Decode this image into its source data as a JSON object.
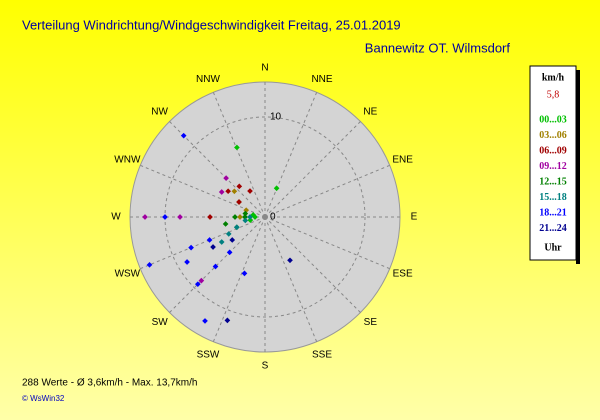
{
  "chart_data": {
    "type": "polar_scatter",
    "title": "Verteilung Windrichtung/Windgeschwindigkeit  Freitag, 25.01.2019",
    "subtitle": "Bannewitz OT. Wilmsdorf",
    "directions": [
      "N",
      "NNE",
      "NE",
      "ENE",
      "E",
      "ESE",
      "SE",
      "SSE",
      "S",
      "SSW",
      "SW",
      "WSW",
      "W",
      "WNW",
      "NW",
      "NNW"
    ],
    "rlim": [
      0,
      13.5
    ],
    "rticks": [
      0,
      10
    ],
    "legend_unit": "km/h",
    "current_value": "5,8",
    "legend_footer": "Uhr",
    "series": [
      {
        "name": "00...03",
        "color": "#00c000",
        "direction": [
          270,
          270,
          258,
          280,
          338,
          22
        ],
        "speed": [
          1,
          2,
          1.5,
          1.2,
          7.5,
          3.1
        ]
      },
      {
        "name": "03...06",
        "color": "#a08000",
        "direction": [
          300,
          310,
          270,
          290
        ],
        "speed": [
          3,
          4,
          2.5,
          2
        ]
      },
      {
        "name": "06...09",
        "color": "#a00000",
        "direction": [
          305,
          320,
          270,
          300,
          330
        ],
        "speed": [
          4.5,
          4,
          5.5,
          3,
          3
        ]
      },
      {
        "name": "09...12",
        "color": "#a000a0",
        "direction": [
          300,
          315,
          270,
          270,
          225
        ],
        "speed": [
          5,
          5.5,
          8.5,
          12,
          9
        ]
      },
      {
        "name": "12...15",
        "color": "#008000",
        "direction": [
          270,
          270,
          260,
          250,
          280
        ],
        "speed": [
          2,
          3,
          4,
          3,
          2
        ]
      },
      {
        "name": "15...18",
        "color": "#008080",
        "direction": [
          250,
          245,
          240,
          260,
          270
        ],
        "speed": [
          3,
          4,
          5,
          2,
          1.5
        ]
      },
      {
        "name": "18...21",
        "color": "#0000ff",
        "direction": [
          247.5,
          247.5,
          247.5,
          225,
          225,
          225,
          210,
          200,
          240,
          270,
          315
        ],
        "speed": [
          6,
          8,
          12.5,
          5,
          7,
          9.5,
          12,
          6,
          9,
          10,
          11.5
        ]
      },
      {
        "name": "21...24",
        "color": "#000090",
        "direction": [
          235,
          240,
          200,
          150
        ],
        "speed": [
          4,
          6,
          11,
          5
        ]
      }
    ],
    "footer": "288 Werte   -   Ø 3,6km/h  -  Max. 13,7km/h",
    "credit": "© WsWin32"
  }
}
